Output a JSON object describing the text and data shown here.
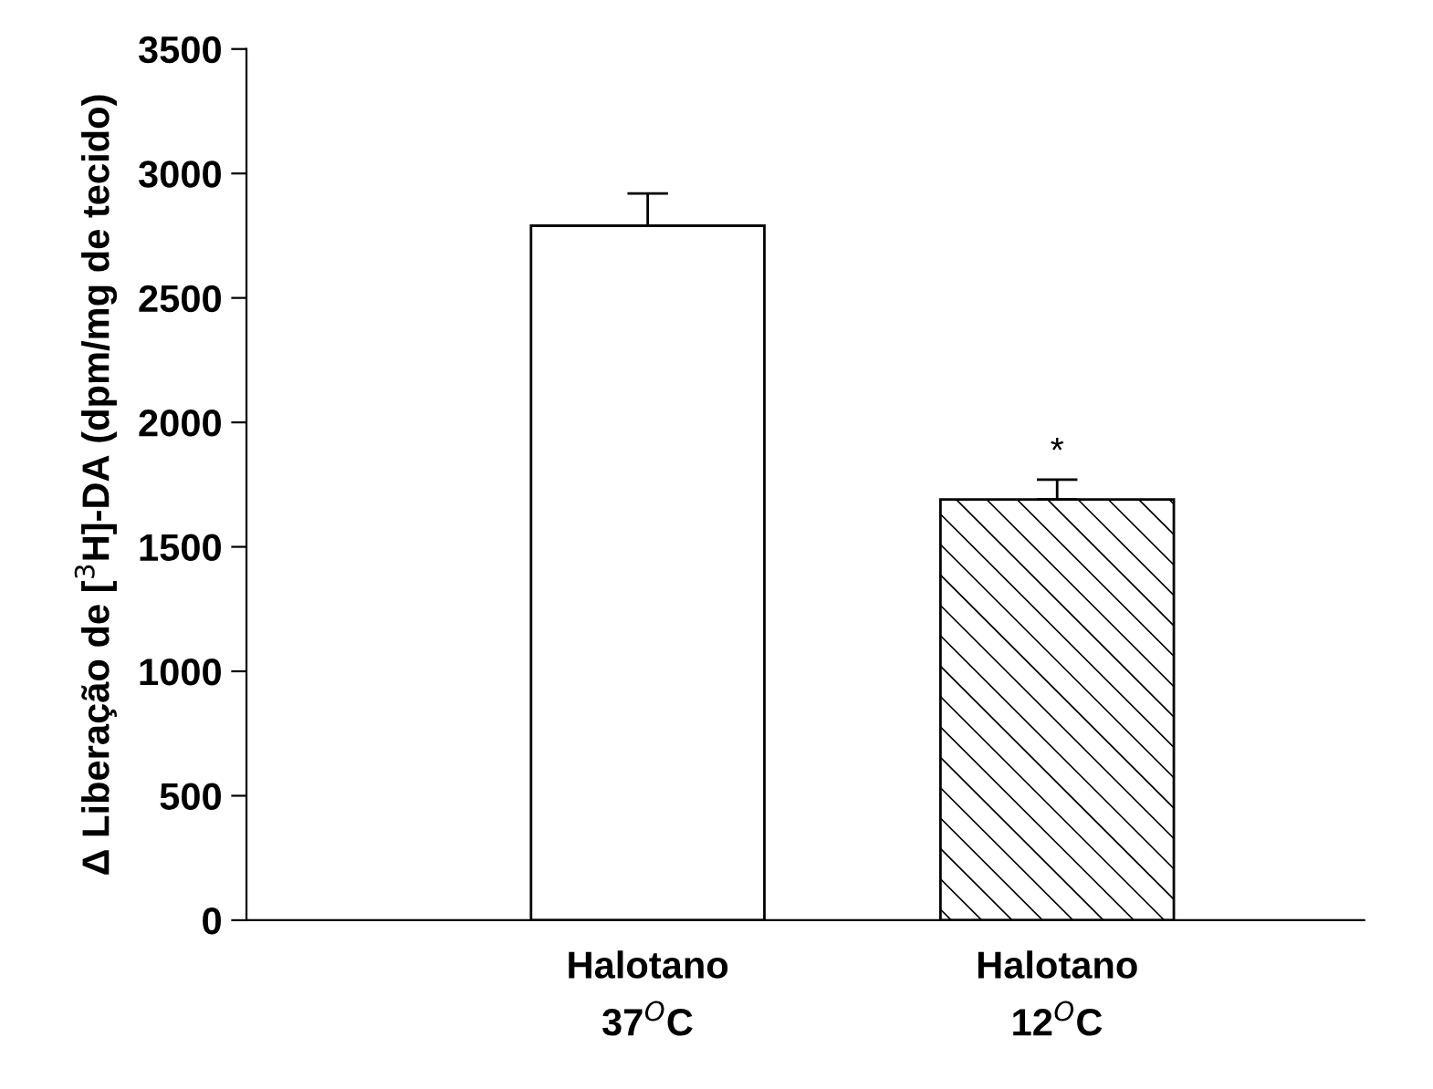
{
  "chart_data": {
    "type": "bar",
    "categories": [
      "Halotano\n37$^{O}$C",
      "Halotano\n12$^{O}$C"
    ],
    "values": [
      2790,
      1690
    ],
    "errors": [
      130,
      80
    ],
    "colors": [
      "#ffffff",
      "#ffffff"
    ],
    "ylabel": "Δ Liberação de [$^{3}$H]-DA (dpm/mg de tecido)",
    "annotations": [
      {
        "text": "*",
        "x": "Halotano\n12$^{O}$C",
        "y": 1770
      }
    ],
    "ylim": [
      0,
      3500
    ],
    "yticks": [
      0,
      500,
      1000,
      1500,
      2000,
      2500,
      3000,
      3500
    ],
    "grid": false
  }
}
